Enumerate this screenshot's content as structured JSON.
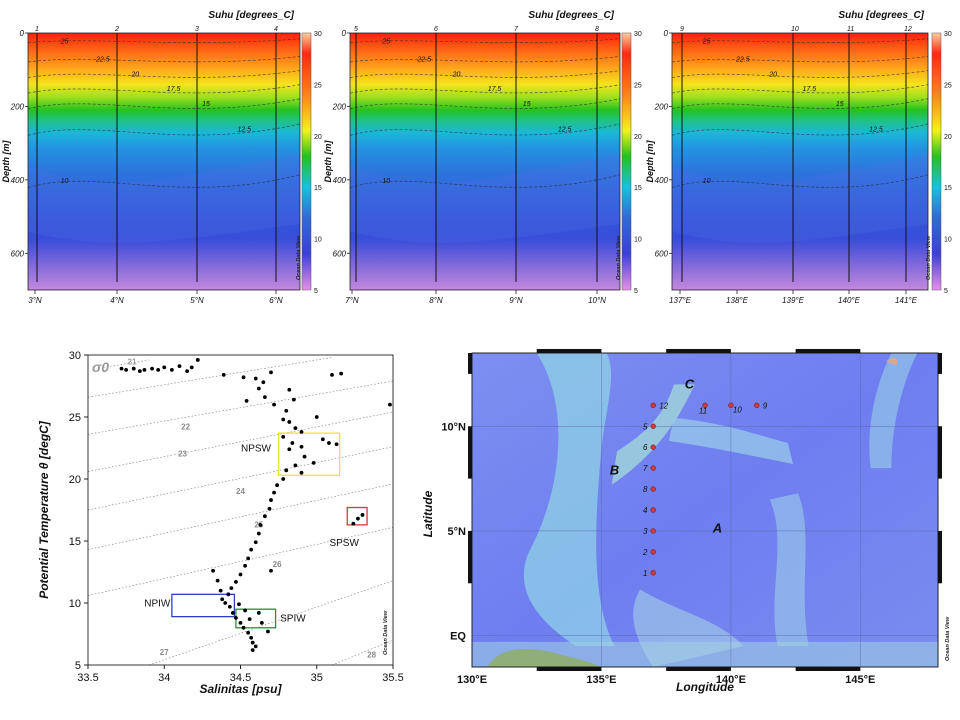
{
  "colorbar": {
    "title": "Suhu [degrees_C]",
    "ticks": [
      "30",
      "25",
      "20",
      "15",
      "10",
      "5"
    ],
    "credit": "Ocean Data View",
    "colors": [
      "#ffd6a8",
      "#ff2a10",
      "#ff9a1c",
      "#f2f21a",
      "#24c21e",
      "#19c0e0",
      "#2f6ad6",
      "#3b40d8",
      "#d98ae0"
    ]
  },
  "chart_data": [
    {
      "type": "heatmap",
      "panel": "section-A",
      "title": "Suhu [degrees_C]",
      "ylabel": "Depth [m]",
      "ylim": [
        700,
        0
      ],
      "zlim": [
        5,
        30
      ],
      "y_ticks": [
        "0",
        "200",
        "400",
        "600"
      ],
      "x_ticks": [
        "3°N",
        "4°N",
        "5°N",
        "6°N"
      ],
      "stations": [
        "1",
        "2",
        "3",
        "4"
      ],
      "contour_labels": [
        "25",
        "22.5",
        "20",
        "17.5",
        "15",
        "12.5",
        "10"
      ]
    },
    {
      "type": "heatmap",
      "panel": "section-B",
      "title": "Suhu [degrees_C]",
      "ylabel": "Depth [m]",
      "ylim": [
        700,
        0
      ],
      "zlim": [
        5,
        30
      ],
      "y_ticks": [
        "0",
        "200",
        "400",
        "600"
      ],
      "x_ticks": [
        "7°N",
        "8°N",
        "9°N",
        "10°N"
      ],
      "stations": [
        "5",
        "6",
        "7",
        "8"
      ],
      "contour_labels": [
        "25",
        "22.5",
        "20",
        "17.5",
        "15",
        "12.5",
        "10"
      ]
    },
    {
      "type": "heatmap",
      "panel": "section-C",
      "title": "Suhu [degrees_C]",
      "ylabel": "Depth [m]",
      "ylim": [
        700,
        0
      ],
      "zlim": [
        5,
        30
      ],
      "y_ticks": [
        "0",
        "200",
        "400",
        "600"
      ],
      "x_ticks": [
        "137°E",
        "138°E",
        "139°E",
        "140°E",
        "141°E"
      ],
      "stations": [
        "9",
        "10",
        "11",
        "12"
      ],
      "contour_labels": [
        "25",
        "22.5",
        "20",
        "17.5",
        "15",
        "12.5",
        "10"
      ]
    },
    {
      "type": "scatter",
      "panel": "ts-diagram",
      "title": "",
      "xlabel": "Salinitas [psu]",
      "ylabel": "Potential Temperature θ [degC]",
      "xlim": [
        33.5,
        35.5
      ],
      "ylim": [
        5,
        30
      ],
      "x_ticks": [
        "33.5",
        "34",
        "34.5",
        "35",
        "35.5"
      ],
      "y_ticks": [
        "5",
        "10",
        "15",
        "20",
        "25",
        "30"
      ],
      "sigma_label": "σ0",
      "isopycnal_labels": [
        "21",
        "22",
        "23",
        "24",
        "25",
        "26",
        "27",
        "28"
      ],
      "credit": "Ocean Data View",
      "water_masses": [
        {
          "name": "NPSW",
          "s": [
            34.75,
            35.15
          ],
          "t": [
            20.3,
            23.7
          ],
          "color": "#f0e23a"
        },
        {
          "name": "SPSW",
          "s": [
            35.2,
            35.33
          ],
          "t": [
            16.3,
            17.7
          ],
          "color": "#d83a30"
        },
        {
          "name": "NPIW",
          "s": [
            34.05,
            34.46
          ],
          "t": [
            8.9,
            10.7
          ],
          "color": "#2d3fbf"
        },
        {
          "name": "SPIW",
          "s": [
            34.47,
            34.73
          ],
          "t": [
            8.0,
            9.5
          ],
          "color": "#2f8a3a"
        }
      ],
      "points": [
        [
          33.72,
          28.9
        ],
        [
          33.75,
          28.8
        ],
        [
          33.8,
          28.9
        ],
        [
          33.84,
          28.7
        ],
        [
          33.87,
          28.8
        ],
        [
          33.92,
          28.9
        ],
        [
          33.96,
          28.8
        ],
        [
          34.0,
          29.0
        ],
        [
          34.05,
          28.8
        ],
        [
          34.1,
          29.1
        ],
        [
          34.15,
          28.7
        ],
        [
          34.18,
          29.0
        ],
        [
          34.22,
          29.6
        ],
        [
          34.39,
          28.4
        ],
        [
          34.52,
          28.2
        ],
        [
          34.6,
          28.1
        ],
        [
          34.65,
          27.8
        ],
        [
          34.7,
          28.6
        ],
        [
          34.62,
          27.3
        ],
        [
          34.54,
          26.3
        ],
        [
          34.66,
          26.6
        ],
        [
          34.72,
          26.0
        ],
        [
          34.82,
          27.2
        ],
        [
          34.85,
          26.4
        ],
        [
          34.8,
          25.5
        ],
        [
          34.78,
          24.8
        ],
        [
          34.82,
          24.6
        ],
        [
          34.86,
          24.1
        ],
        [
          34.9,
          23.8
        ],
        [
          34.78,
          23.4
        ],
        [
          34.84,
          22.9
        ],
        [
          34.9,
          22.6
        ],
        [
          34.82,
          22.4
        ],
        [
          35.04,
          23.2
        ],
        [
          35.08,
          22.9
        ],
        [
          35.13,
          22.8
        ],
        [
          34.92,
          21.8
        ],
        [
          34.86,
          21.1
        ],
        [
          34.8,
          20.7
        ],
        [
          34.9,
          20.5
        ],
        [
          34.98,
          21.3
        ],
        [
          35.0,
          25.0
        ],
        [
          35.16,
          28.5
        ],
        [
          35.1,
          28.4
        ],
        [
          35.48,
          26.0
        ],
        [
          34.78,
          20.0
        ],
        [
          34.74,
          19.5
        ],
        [
          34.72,
          18.9
        ],
        [
          34.7,
          18.3
        ],
        [
          34.69,
          17.6
        ],
        [
          34.66,
          17.0
        ],
        [
          34.63,
          16.3
        ],
        [
          34.62,
          15.6
        ],
        [
          34.6,
          14.9
        ],
        [
          34.57,
          14.3
        ],
        [
          34.55,
          13.6
        ],
        [
          34.53,
          13.0
        ],
        [
          34.5,
          12.3
        ],
        [
          34.47,
          11.7
        ],
        [
          34.44,
          11.2
        ],
        [
          34.42,
          10.7
        ],
        [
          34.38,
          10.3
        ],
        [
          34.32,
          12.6
        ],
        [
          34.35,
          11.8
        ],
        [
          34.37,
          11.0
        ],
        [
          34.4,
          10.0
        ],
        [
          34.43,
          9.7
        ],
        [
          34.45,
          9.2
        ],
        [
          34.47,
          8.8
        ],
        [
          34.5,
          8.4
        ],
        [
          34.52,
          8.0
        ],
        [
          34.55,
          7.6
        ],
        [
          34.57,
          7.2
        ],
        [
          34.58,
          6.8
        ],
        [
          34.6,
          6.5
        ],
        [
          34.58,
          6.2
        ],
        [
          34.56,
          8.7
        ],
        [
          34.53,
          9.4
        ],
        [
          34.49,
          9.9
        ],
        [
          34.62,
          9.2
        ],
        [
          34.64,
          8.4
        ],
        [
          34.68,
          7.7
        ],
        [
          34.7,
          12.6
        ],
        [
          35.24,
          16.4
        ],
        [
          35.27,
          16.8
        ],
        [
          35.3,
          17.1
        ]
      ]
    }
  ],
  "map": {
    "xlabel": "Longitude",
    "ylabel": "Latitude",
    "lon_range": [
      130,
      148
    ],
    "lat_range": [
      -1.5,
      13.5
    ],
    "x_ticks": [
      "130°E",
      "135°E",
      "140°E",
      "145°E"
    ],
    "y_ticks": [
      "EQ",
      "5°N",
      "10°N"
    ],
    "transect_labels": [
      "A",
      "B",
      "C"
    ],
    "credit": "Ocean Data View",
    "stations": [
      {
        "id": "1",
        "lon": 137.0,
        "lat": 3.0
      },
      {
        "id": "2",
        "lon": 137.0,
        "lat": 4.0
      },
      {
        "id": "3",
        "lon": 137.0,
        "lat": 5.0
      },
      {
        "id": "4",
        "lon": 137.0,
        "lat": 6.0
      },
      {
        "id": "8",
        "lon": 137.0,
        "lat": 7.0
      },
      {
        "id": "7",
        "lon": 137.0,
        "lat": 8.0
      },
      {
        "id": "6",
        "lon": 137.0,
        "lat": 9.0
      },
      {
        "id": "5",
        "lon": 137.0,
        "lat": 10.0
      },
      {
        "id": "12",
        "lon": 137.0,
        "lat": 11.0
      },
      {
        "id": "11",
        "lon": 139.0,
        "lat": 11.0
      },
      {
        "id": "10",
        "lon": 140.0,
        "lat": 11.0
      },
      {
        "id": "9",
        "lon": 141.0,
        "lat": 11.0
      }
    ]
  }
}
